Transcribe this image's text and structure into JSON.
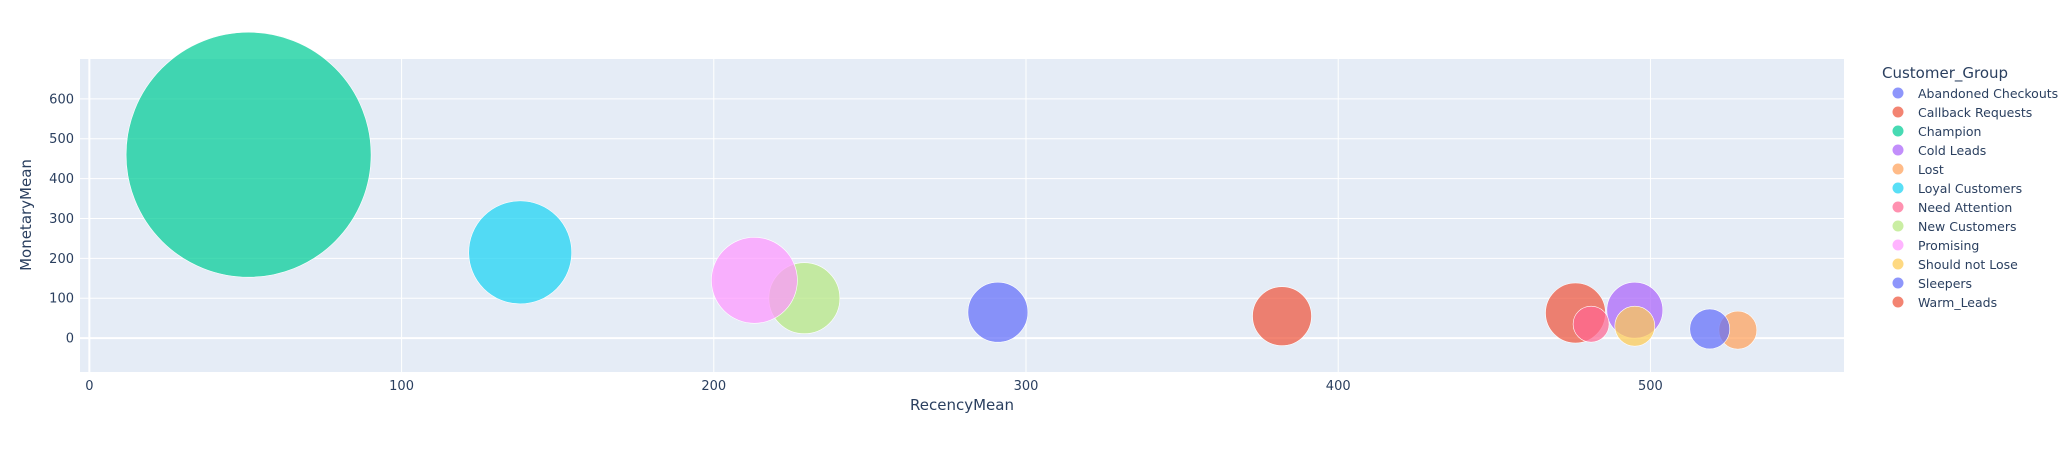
{
  "chart_data": {
    "type": "scatter",
    "subtype": "bubble",
    "xlabel": "RecencyMean",
    "ylabel": "MonetaryMean",
    "xlim": [
      -3,
      562
    ],
    "ylim": [
      -85,
      700
    ],
    "xticks": [
      0,
      100,
      200,
      300,
      400,
      500
    ],
    "yticks": [
      0,
      100,
      200,
      300,
      400,
      500,
      600
    ],
    "grid": true,
    "plot_background": "#e5ecf6",
    "legend": {
      "title": "Customer_Group",
      "placement": "right"
    },
    "series": [
      {
        "name": "Abandoned Checkouts",
        "color": "#636efa",
        "points": []
      },
      {
        "name": "Callback Requests",
        "color": "#EF553B",
        "points": [
          {
            "x": 476,
            "y": 63,
            "size": 60
          }
        ]
      },
      {
        "name": "Champion",
        "color": "#00cc96",
        "points": [
          {
            "x": 51,
            "y": 460,
            "size": 245
          }
        ]
      },
      {
        "name": "Cold Leads",
        "color": "#ab63fa",
        "points": [
          {
            "x": 495,
            "y": 70,
            "size": 56
          }
        ]
      },
      {
        "name": "Lost",
        "color": "#FFA15A",
        "points": [
          {
            "x": 528,
            "y": 20,
            "size": 38
          }
        ]
      },
      {
        "name": "Loyal Customers",
        "color": "#19d3f3",
        "points": [
          {
            "x": 138,
            "y": 215,
            "size": 103
          }
        ]
      },
      {
        "name": "Need Attention",
        "color": "#FF6692",
        "points": [
          {
            "x": 481,
            "y": 35,
            "size": 36
          }
        ]
      },
      {
        "name": "New Customers",
        "color": "#B6E880",
        "points": [
          {
            "x": 229,
            "y": 100,
            "size": 71
          }
        ]
      },
      {
        "name": "Promising",
        "color": "#FF97FF",
        "points": [
          {
            "x": 213,
            "y": 145,
            "size": 86
          }
        ]
      },
      {
        "name": "Should not Lose",
        "color": "#FECB52",
        "points": [
          {
            "x": 495,
            "y": 30,
            "size": 40
          }
        ]
      },
      {
        "name": "Sleepers",
        "color": "#636efa",
        "points": [
          {
            "x": 291,
            "y": 65,
            "size": 60
          },
          {
            "x": 519,
            "y": 23,
            "size": 40
          }
        ]
      },
      {
        "name": "Warm_Leads",
        "color": "#EF553B",
        "points": [
          {
            "x": 382,
            "y": 55,
            "size": 59
          }
        ]
      }
    ]
  }
}
